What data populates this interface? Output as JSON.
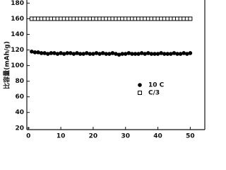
{
  "chart_data": {
    "type": "scatter",
    "y_label": "比容量(mAh/g)",
    "x": [
      1,
      2,
      3,
      4,
      5,
      6,
      7,
      8,
      9,
      10,
      11,
      12,
      13,
      14,
      15,
      16,
      17,
      18,
      19,
      20,
      21,
      22,
      23,
      24,
      25,
      26,
      27,
      28,
      29,
      30,
      31,
      32,
      33,
      34,
      35,
      36,
      37,
      38,
      39,
      40,
      41,
      42,
      43,
      44,
      45,
      46,
      47,
      48,
      49,
      50
    ],
    "series": [
      {
        "name": "10 C",
        "color": "#000000",
        "marker": "filled-circle",
        "values": [
          118,
          117,
          117,
          116,
          116,
          115,
          116,
          116,
          115,
          116,
          115,
          116,
          116,
          115,
          116,
          115,
          115,
          116,
          115,
          115,
          116,
          115,
          116,
          115,
          115,
          116,
          115,
          114,
          115,
          115,
          116,
          115,
          115,
          115,
          116,
          115,
          116,
          115,
          115,
          115,
          116,
          115,
          115,
          115,
          116,
          115,
          115,
          116,
          115,
          116
        ]
      },
      {
        "name": "C/3",
        "color": "#000000",
        "marker": "open-square",
        "values": [
          160,
          160,
          160,
          160,
          160,
          160,
          160,
          160,
          160,
          160,
          160,
          160,
          160,
          160,
          160,
          160,
          160,
          160,
          160,
          160,
          160,
          160,
          160,
          160,
          160,
          160,
          160,
          160,
          160,
          160,
          160,
          160,
          160,
          160,
          160,
          160,
          160,
          160,
          160,
          160,
          160,
          160,
          160,
          160,
          160,
          160,
          160,
          160,
          160,
          160
        ]
      }
    ],
    "xlim": [
      -0.5,
      54.5
    ],
    "xticks": [
      0,
      10,
      20,
      30,
      40,
      50
    ],
    "ylim": [
      18,
      184
    ],
    "yticks": [
      20,
      40,
      60,
      80,
      100,
      120,
      140,
      160,
      180
    ],
    "grid": false
  }
}
